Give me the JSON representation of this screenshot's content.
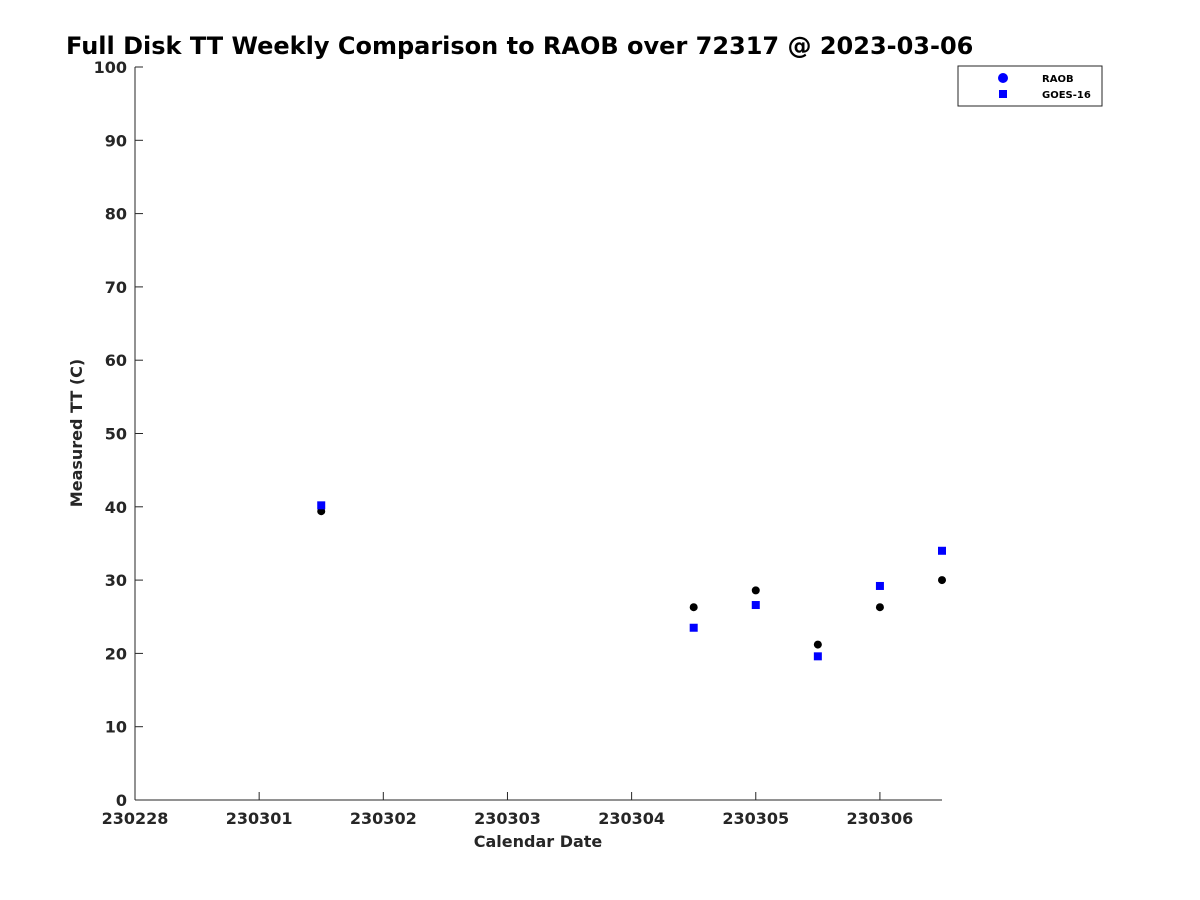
{
  "chart_data": {
    "type": "scatter",
    "title": "Full Disk TT Weekly Comparison to RAOB over 72317 @ 2023-03-06",
    "xlabel": "Calendar Date",
    "ylabel": "Measured TT (C)",
    "xlim": [
      0,
      6.5
    ],
    "ylim": [
      0,
      100
    ],
    "x_ticks": [
      {
        "value": 0,
        "label": "230228"
      },
      {
        "value": 1,
        "label": "230301"
      },
      {
        "value": 2,
        "label": "230302"
      },
      {
        "value": 3,
        "label": "230303"
      },
      {
        "value": 4,
        "label": "230304"
      },
      {
        "value": 5,
        "label": "230305"
      },
      {
        "value": 6,
        "label": "230306"
      }
    ],
    "y_ticks": [
      0,
      10,
      20,
      30,
      40,
      50,
      60,
      70,
      80,
      90,
      100
    ],
    "legend_position": "top-right",
    "series": [
      {
        "name": "RAOB",
        "marker": "circle",
        "color": "#000000",
        "legend_color": "#0000ff",
        "points": [
          {
            "x": 1.5,
            "y": 39.4
          },
          {
            "x": 4.5,
            "y": 26.3
          },
          {
            "x": 5.0,
            "y": 28.6
          },
          {
            "x": 5.5,
            "y": 21.2
          },
          {
            "x": 6.0,
            "y": 26.3
          },
          {
            "x": 6.5,
            "y": 30.0
          }
        ]
      },
      {
        "name": "GOES-16",
        "marker": "square",
        "color": "#0000ff",
        "legend_color": "#0000ff",
        "points": [
          {
            "x": 1.5,
            "y": 40.2
          },
          {
            "x": 4.5,
            "y": 23.5
          },
          {
            "x": 5.0,
            "y": 26.6
          },
          {
            "x": 5.5,
            "y": 19.6
          },
          {
            "x": 6.0,
            "y": 29.2
          },
          {
            "x": 6.5,
            "y": 34.0
          }
        ]
      }
    ]
  }
}
